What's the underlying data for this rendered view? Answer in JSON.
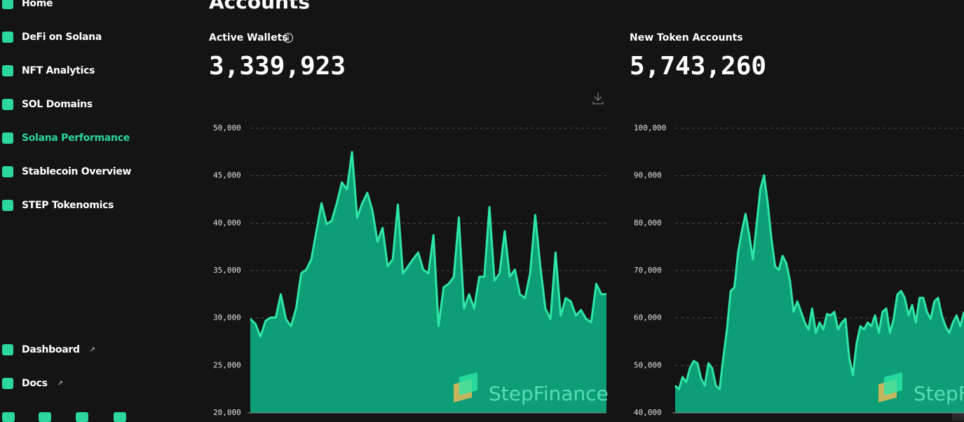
{
  "page_title": "Accounts",
  "nav": {
    "items": [
      "Home",
      "DeFi on Solana",
      "NFT Analytics",
      "SOL Domains",
      "Solana Performance",
      "Stablecoin Overview",
      "STEP Tokenomics"
    ],
    "links": [
      "Dashboard",
      "Docs"
    ]
  },
  "chart_data": [
    {
      "type": "area",
      "title": "Active Wallets",
      "headline": "3,339,923",
      "watermark": "StepFinance",
      "color": "#2ee6a6",
      "fill_color": "#0d9e77",
      "grid": true,
      "ylim": [
        20000,
        50000
      ],
      "yticks": [
        {
          "value": 20000,
          "label": "20,000"
        },
        {
          "value": 25000,
          "label": "25,000"
        },
        {
          "value": 30000,
          "label": "30,000"
        },
        {
          "value": 35000,
          "label": "35,000"
        },
        {
          "value": 40000,
          "label": "40,000"
        },
        {
          "value": 45000,
          "label": "45,000"
        },
        {
          "value": 50000,
          "label": "50,000"
        }
      ],
      "values": [
        29900,
        29400,
        28050,
        29700,
        30050,
        30050,
        32500,
        29900,
        29150,
        31000,
        34700,
        35100,
        36200,
        39150,
        42100,
        39900,
        40250,
        42100,
        44300,
        43550,
        47500,
        40600,
        42100,
        43200,
        41350,
        38050,
        39500,
        35450,
        36200,
        41950,
        34700,
        35450,
        36200,
        36900,
        35100,
        34700,
        38750,
        29150,
        33250,
        33600,
        34350,
        40600,
        31000,
        32500,
        31000,
        34350,
        34350,
        41700,
        33950,
        34700,
        39150,
        34350,
        35100,
        32500,
        32100,
        34700,
        40850,
        35450,
        31000,
        29900,
        36900,
        30250,
        32100,
        31750,
        30250,
        30850,
        29900,
        29550,
        33600,
        32500,
        32500
      ]
    },
    {
      "type": "area",
      "title": "New Token Accounts",
      "headline": "5,743,260",
      "watermark": "StepFinance",
      "color": "#2ee6a6",
      "fill_color": "#0d9e77",
      "grid": true,
      "ylim": [
        40000,
        100000
      ],
      "yticks": [
        {
          "value": 40000,
          "label": "40,000"
        },
        {
          "value": 50000,
          "label": "50,000"
        },
        {
          "value": 60000,
          "label": "60,000"
        },
        {
          "value": 70000,
          "label": "70,000"
        },
        {
          "value": 80000,
          "label": "80,000"
        },
        {
          "value": 90000,
          "label": "90,000"
        },
        {
          "value": 100000,
          "label": "100,000"
        }
      ],
      "values": [
        45750,
        45000,
        47550,
        46500,
        49450,
        50950,
        50500,
        47250,
        45750,
        50500,
        49450,
        45750,
        45000,
        51650,
        57600,
        65700,
        66450,
        73850,
        78300,
        81950,
        77550,
        72350,
        79750,
        87150,
        90100,
        84200,
        76800,
        70900,
        70150,
        73100,
        71600,
        67950,
        61300,
        63500,
        61300,
        59050,
        57600,
        62000,
        56850,
        59050,
        57600,
        60850,
        60550,
        61300,
        57600,
        59050,
        59800,
        51650,
        47950,
        54650,
        58300,
        57600,
        59050,
        58300,
        60550,
        56850,
        61300,
        62000,
        56850,
        59800,
        64950,
        65700,
        64250,
        60550,
        62750,
        59050,
        64250,
        64250,
        61300,
        59800,
        63500,
        64250,
        60550,
        58300,
        56850,
        59050,
        60550,
        58300,
        61300
      ]
    }
  ]
}
